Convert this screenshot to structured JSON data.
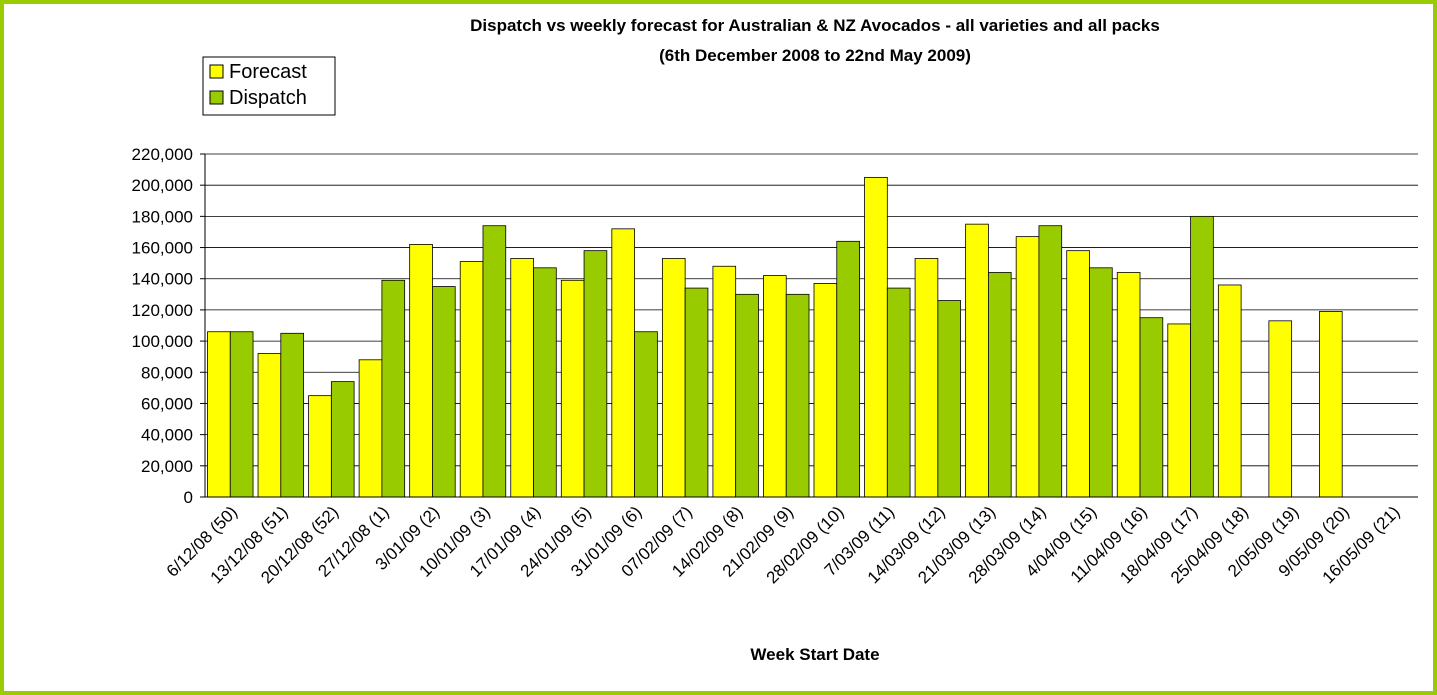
{
  "chart_data": {
    "type": "bar",
    "title": "Dispatch vs weekly forecast for Australian & NZ Avocados - all varieties and all packs",
    "subtitle": "(6th December 2008 to 22nd May 2009)",
    "x_label": "Week Start Date",
    "categories": [
      "6/12/08 (50)",
      "13/12/08 (51)",
      "20/12/08 (52)",
      "27/12/08 (1)",
      "3/01/09 (2)",
      "10/01/09 (3)",
      "17/01/09 (4)",
      "24/01/09 (5)",
      "31/01/09 (6)",
      "07/02/09 (7)",
      "14/02/09 (8)",
      "21/02/09 (9)",
      "28/02/09 (10)",
      "7/03/09 (11)",
      "14/03/09 (12)",
      "21/03/09 (13)",
      "28/03/09 (14)",
      "4/04/09 (15)",
      "11/04/09 (16)",
      "18/04/09 (17)",
      "25/04/09 (18)",
      "2/05/09 (19)",
      "9/05/09 (20)",
      "16/05/09 (21)"
    ],
    "series": [
      {
        "name": "Forecast",
        "color": "#ffff00",
        "values": [
          106000,
          92000,
          65000,
          88000,
          162000,
          151000,
          153000,
          139000,
          172000,
          153000,
          148000,
          142000,
          137000,
          205000,
          153000,
          175000,
          167000,
          158000,
          144000,
          111000,
          136000,
          113000,
          119000,
          null
        ]
      },
      {
        "name": "Dispatch",
        "color": "#99cc00",
        "values": [
          106000,
          105000,
          74000,
          139000,
          135000,
          174000,
          147000,
          158000,
          106000,
          134000,
          130000,
          130000,
          164000,
          134000,
          126000,
          144000,
          174000,
          147000,
          115000,
          180000,
          null,
          null,
          null,
          null
        ]
      }
    ],
    "ylim": [
      0,
      220000
    ],
    "yticks": [
      0,
      {
        "value": 20000,
        "label": "20,000"
      },
      {
        "value": 40000,
        "label": "40,000"
      },
      {
        "value": 60000,
        "label": "60,000"
      },
      {
        "value": 80000,
        "label": "80,000"
      },
      {
        "value": 100000,
        "label": "100,000"
      },
      {
        "value": 120000,
        "label": "120,000"
      },
      {
        "value": 140000,
        "label": "140,000"
      },
      {
        "value": 160000,
        "label": "160,000"
      },
      {
        "value": 180000,
        "label": "180,000"
      },
      {
        "value": 200000,
        "label": "200,000"
      },
      {
        "value": 220000,
        "label": "220,000"
      }
    ],
    "grid": true,
    "legend": "top-left"
  }
}
